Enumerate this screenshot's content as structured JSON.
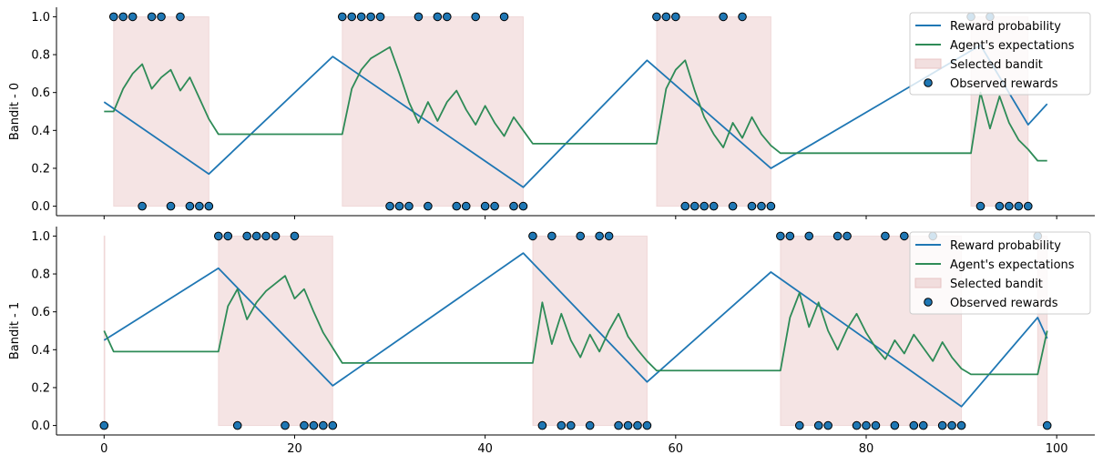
{
  "colors": {
    "reward": "#1f77b4",
    "expect": "#2e8b57",
    "selected_fill": "#e8c4c4",
    "marker": "#1f77b4",
    "marker_edge": "#000000"
  },
  "legend": {
    "reward": "Reward probability",
    "expect": "Agent's expectations",
    "selected": "Selected bandit",
    "observed": "Observed rewards"
  },
  "chart_data": [
    {
      "type": "line",
      "ylabel": "Bandit - 0",
      "xlim": [
        -5,
        104
      ],
      "ylim": [
        -0.05,
        1.05
      ],
      "xticks": [],
      "yticks": [
        0.0,
        0.2,
        0.4,
        0.6,
        0.8,
        1.0
      ],
      "ytick_labels": [
        "0.0",
        "0.2",
        "0.4",
        "0.6",
        "0.8",
        "1.0"
      ],
      "legend_position": "top-right",
      "reward_probability": [
        [
          0,
          0.55
        ],
        [
          11,
          0.17
        ],
        [
          24,
          0.79
        ],
        [
          44,
          0.1
        ],
        [
          57,
          0.77
        ],
        [
          70,
          0.2
        ],
        [
          92,
          0.85
        ],
        [
          97,
          0.43
        ],
        [
          99,
          0.54
        ]
      ],
      "agent_expectations": [
        [
          0,
          0.5
        ],
        [
          1,
          0.5
        ],
        [
          2,
          0.62
        ],
        [
          3,
          0.7
        ],
        [
          4,
          0.75
        ],
        [
          5,
          0.62
        ],
        [
          6,
          0.68
        ],
        [
          7,
          0.72
        ],
        [
          8,
          0.61
        ],
        [
          9,
          0.68
        ],
        [
          10,
          0.57
        ],
        [
          11,
          0.46
        ],
        [
          12,
          0.38
        ],
        [
          25,
          0.38
        ],
        [
          26,
          0.62
        ],
        [
          27,
          0.72
        ],
        [
          28,
          0.78
        ],
        [
          29,
          0.81
        ],
        [
          30,
          0.84
        ],
        [
          31,
          0.7
        ],
        [
          32,
          0.55
        ],
        [
          33,
          0.44
        ],
        [
          34,
          0.55
        ],
        [
          35,
          0.45
        ],
        [
          36,
          0.55
        ],
        [
          37,
          0.61
        ],
        [
          38,
          0.51
        ],
        [
          39,
          0.43
        ],
        [
          40,
          0.53
        ],
        [
          41,
          0.44
        ],
        [
          42,
          0.37
        ],
        [
          43,
          0.47
        ],
        [
          44,
          0.4
        ],
        [
          45,
          0.33
        ],
        [
          58,
          0.33
        ],
        [
          59,
          0.62
        ],
        [
          60,
          0.72
        ],
        [
          61,
          0.77
        ],
        [
          62,
          0.61
        ],
        [
          63,
          0.47
        ],
        [
          64,
          0.38
        ],
        [
          65,
          0.31
        ],
        [
          66,
          0.44
        ],
        [
          67,
          0.36
        ],
        [
          68,
          0.47
        ],
        [
          69,
          0.38
        ],
        [
          70,
          0.32
        ],
        [
          71,
          0.28
        ],
        [
          91,
          0.28
        ],
        [
          92,
          0.6
        ],
        [
          93,
          0.41
        ],
        [
          94,
          0.58
        ],
        [
          95,
          0.44
        ],
        [
          96,
          0.35
        ],
        [
          97,
          0.3
        ],
        [
          98,
          0.24
        ],
        [
          99,
          0.24
        ]
      ],
      "selected_ranges": [
        [
          1,
          11
        ],
        [
          25,
          44
        ],
        [
          58,
          70
        ],
        [
          91,
          97
        ]
      ],
      "observed_rewards": [
        [
          1,
          1
        ],
        [
          2,
          1
        ],
        [
          3,
          1
        ],
        [
          5,
          1
        ],
        [
          6,
          1
        ],
        [
          8,
          1
        ],
        [
          4,
          0
        ],
        [
          7,
          0
        ],
        [
          9,
          0
        ],
        [
          10,
          0
        ],
        [
          11,
          0
        ],
        [
          25,
          1
        ],
        [
          26,
          1
        ],
        [
          27,
          1
        ],
        [
          28,
          1
        ],
        [
          29,
          1
        ],
        [
          33,
          1
        ],
        [
          35,
          1
        ],
        [
          36,
          1
        ],
        [
          39,
          1
        ],
        [
          42,
          1
        ],
        [
          30,
          0
        ],
        [
          31,
          0
        ],
        [
          32,
          0
        ],
        [
          34,
          0
        ],
        [
          37,
          0
        ],
        [
          38,
          0
        ],
        [
          40,
          0
        ],
        [
          41,
          0
        ],
        [
          43,
          0
        ],
        [
          44,
          0
        ],
        [
          58,
          1
        ],
        [
          59,
          1
        ],
        [
          60,
          1
        ],
        [
          65,
          1
        ],
        [
          67,
          1
        ],
        [
          61,
          0
        ],
        [
          62,
          0
        ],
        [
          63,
          0
        ],
        [
          64,
          0
        ],
        [
          66,
          0
        ],
        [
          68,
          0
        ],
        [
          69,
          0
        ],
        [
          70,
          0
        ],
        [
          91,
          1
        ],
        [
          93,
          1
        ],
        [
          92,
          0
        ],
        [
          94,
          0
        ],
        [
          95,
          0
        ],
        [
          96,
          0
        ],
        [
          97,
          0
        ]
      ]
    },
    {
      "type": "line",
      "ylabel": "Bandit - 1",
      "xlim": [
        -5,
        104
      ],
      "ylim": [
        -0.05,
        1.05
      ],
      "xticks": [
        0,
        20,
        40,
        60,
        80,
        100
      ],
      "xtick_labels": [
        "0",
        "20",
        "40",
        "60",
        "80",
        "100"
      ],
      "yticks": [
        0.0,
        0.2,
        0.4,
        0.6,
        0.8,
        1.0
      ],
      "ytick_labels": [
        "0.0",
        "0.2",
        "0.4",
        "0.6",
        "0.8",
        "1.0"
      ],
      "legend_position": "top-right",
      "reward_probability": [
        [
          0,
          0.45
        ],
        [
          12,
          0.83
        ],
        [
          24,
          0.21
        ],
        [
          44,
          0.91
        ],
        [
          57,
          0.23
        ],
        [
          70,
          0.81
        ],
        [
          90,
          0.1
        ],
        [
          98,
          0.57
        ],
        [
          99,
          0.46
        ]
      ],
      "agent_expectations": [
        [
          0,
          0.5
        ],
        [
          1,
          0.39
        ],
        [
          12,
          0.39
        ],
        [
          13,
          0.63
        ],
        [
          14,
          0.72
        ],
        [
          15,
          0.56
        ],
        [
          16,
          0.65
        ],
        [
          17,
          0.71
        ],
        [
          18,
          0.75
        ],
        [
          19,
          0.79
        ],
        [
          20,
          0.67
        ],
        [
          21,
          0.72
        ],
        [
          22,
          0.6
        ],
        [
          23,
          0.49
        ],
        [
          24,
          0.41
        ],
        [
          25,
          0.33
        ],
        [
          45,
          0.33
        ],
        [
          46,
          0.65
        ],
        [
          47,
          0.43
        ],
        [
          48,
          0.59
        ],
        [
          49,
          0.45
        ],
        [
          50,
          0.36
        ],
        [
          51,
          0.48
        ],
        [
          52,
          0.39
        ],
        [
          53,
          0.5
        ],
        [
          54,
          0.59
        ],
        [
          55,
          0.47
        ],
        [
          56,
          0.4
        ],
        [
          57,
          0.34
        ],
        [
          58,
          0.29
        ],
        [
          71,
          0.29
        ],
        [
          72,
          0.57
        ],
        [
          73,
          0.7
        ],
        [
          74,
          0.52
        ],
        [
          75,
          0.65
        ],
        [
          76,
          0.5
        ],
        [
          77,
          0.4
        ],
        [
          78,
          0.51
        ],
        [
          79,
          0.59
        ],
        [
          80,
          0.49
        ],
        [
          81,
          0.41
        ],
        [
          82,
          0.35
        ],
        [
          83,
          0.45
        ],
        [
          84,
          0.38
        ],
        [
          85,
          0.48
        ],
        [
          86,
          0.41
        ],
        [
          87,
          0.34
        ],
        [
          88,
          0.44
        ],
        [
          89,
          0.36
        ],
        [
          90,
          0.3
        ],
        [
          91,
          0.27
        ],
        [
          98,
          0.27
        ],
        [
          99,
          0.5
        ]
      ],
      "selected_ranges": [
        [
          0,
          0
        ],
        [
          12,
          24
        ],
        [
          45,
          57
        ],
        [
          71,
          90
        ],
        [
          98,
          99
        ]
      ],
      "observed_rewards": [
        [
          0,
          0
        ],
        [
          12,
          1
        ],
        [
          13,
          1
        ],
        [
          15,
          1
        ],
        [
          16,
          1
        ],
        [
          17,
          1
        ],
        [
          18,
          1
        ],
        [
          20,
          1
        ],
        [
          14,
          0
        ],
        [
          19,
          0
        ],
        [
          21,
          0
        ],
        [
          22,
          0
        ],
        [
          23,
          0
        ],
        [
          24,
          0
        ],
        [
          45,
          1
        ],
        [
          47,
          1
        ],
        [
          50,
          1
        ],
        [
          52,
          1
        ],
        [
          53,
          1
        ],
        [
          46,
          0
        ],
        [
          48,
          0
        ],
        [
          49,
          0
        ],
        [
          51,
          0
        ],
        [
          54,
          0
        ],
        [
          55,
          0
        ],
        [
          56,
          0
        ],
        [
          57,
          0
        ],
        [
          71,
          1
        ],
        [
          72,
          1
        ],
        [
          74,
          1
        ],
        [
          77,
          1
        ],
        [
          78,
          1
        ],
        [
          82,
          1
        ],
        [
          84,
          1
        ],
        [
          87,
          1
        ],
        [
          73,
          0
        ],
        [
          75,
          0
        ],
        [
          76,
          0
        ],
        [
          79,
          0
        ],
        [
          80,
          0
        ],
        [
          81,
          0
        ],
        [
          83,
          0
        ],
        [
          85,
          0
        ],
        [
          86,
          0
        ],
        [
          88,
          0
        ],
        [
          89,
          0
        ],
        [
          90,
          0
        ],
        [
          98,
          1
        ],
        [
          99,
          0
        ]
      ]
    }
  ]
}
